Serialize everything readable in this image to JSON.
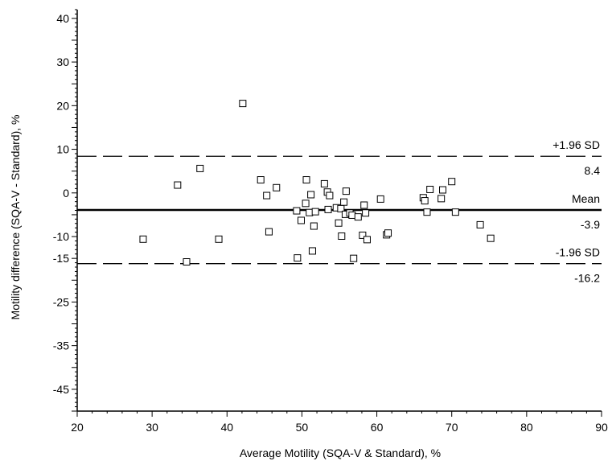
{
  "chart_data": {
    "type": "scatter",
    "title": "",
    "xlabel": "Average Motility (SQA-V & Standard), %",
    "ylabel": "Motility difference (SQA-V - Standard), %",
    "xlim": [
      20,
      90
    ],
    "ylim": [
      -50,
      42
    ],
    "xticks": [
      20,
      30,
      40,
      50,
      60,
      70,
      80,
      90
    ],
    "yticks": [
      40,
      30,
      20,
      10,
      0,
      -10,
      -15,
      -25,
      -35,
      -45
    ],
    "marker": "open-square",
    "grid": false,
    "reference_lines": [
      {
        "label": "+1.96 SD",
        "value": 8.4,
        "value_label": "8.4",
        "style": "dashed"
      },
      {
        "label": "Mean",
        "value": -3.9,
        "value_label": "-3.9",
        "style": "solid"
      },
      {
        "label": "-1.96 SD",
        "value": -16.2,
        "value_label": "-16.2",
        "style": "dashed"
      }
    ],
    "points": [
      {
        "x": 28.8,
        "y": -10.6
      },
      {
        "x": 33.4,
        "y": 1.8
      },
      {
        "x": 34.6,
        "y": -15.8
      },
      {
        "x": 36.4,
        "y": 5.6
      },
      {
        "x": 38.9,
        "y": -10.6
      },
      {
        "x": 42.1,
        "y": 20.5
      },
      {
        "x": 44.5,
        "y": 3.0
      },
      {
        "x": 45.3,
        "y": -0.6
      },
      {
        "x": 45.6,
        "y": -8.9
      },
      {
        "x": 46.6,
        "y": 1.2
      },
      {
        "x": 49.3,
        "y": -4.1
      },
      {
        "x": 49.4,
        "y": -14.9
      },
      {
        "x": 49.9,
        "y": -6.3
      },
      {
        "x": 50.5,
        "y": -2.4
      },
      {
        "x": 50.6,
        "y": 3.0
      },
      {
        "x": 51.0,
        "y": -4.5
      },
      {
        "x": 51.2,
        "y": -0.4
      },
      {
        "x": 51.4,
        "y": -13.3
      },
      {
        "x": 51.6,
        "y": -7.6
      },
      {
        "x": 51.8,
        "y": -4.3
      },
      {
        "x": 53.0,
        "y": 2.1
      },
      {
        "x": 53.4,
        "y": 0.2
      },
      {
        "x": 53.5,
        "y": -3.8
      },
      {
        "x": 53.7,
        "y": -0.6
      },
      {
        "x": 54.6,
        "y": -3.4
      },
      {
        "x": 54.9,
        "y": -6.9
      },
      {
        "x": 55.2,
        "y": -3.6
      },
      {
        "x": 55.3,
        "y": -9.9
      },
      {
        "x": 55.6,
        "y": -2.1
      },
      {
        "x": 55.8,
        "y": -4.9
      },
      {
        "x": 55.9,
        "y": 0.4
      },
      {
        "x": 56.4,
        "y": -4.6
      },
      {
        "x": 56.7,
        "y": -5.1
      },
      {
        "x": 56.9,
        "y": -15.0
      },
      {
        "x": 57.5,
        "y": -5.5
      },
      {
        "x": 58.1,
        "y": -9.7
      },
      {
        "x": 58.3,
        "y": -2.8
      },
      {
        "x": 58.5,
        "y": -4.6
      },
      {
        "x": 58.7,
        "y": -10.7
      },
      {
        "x": 60.5,
        "y": -1.4
      },
      {
        "x": 61.3,
        "y": -9.6
      },
      {
        "x": 61.5,
        "y": -9.2
      },
      {
        "x": 66.2,
        "y": -1.1
      },
      {
        "x": 66.4,
        "y": -1.8
      },
      {
        "x": 66.7,
        "y": -4.4
      },
      {
        "x": 67.1,
        "y": 0.8
      },
      {
        "x": 68.6,
        "y": -1.3
      },
      {
        "x": 68.8,
        "y": 0.7
      },
      {
        "x": 70.0,
        "y": 2.6
      },
      {
        "x": 70.5,
        "y": -4.4
      },
      {
        "x": 73.8,
        "y": -7.3
      },
      {
        "x": 75.2,
        "y": -10.4
      }
    ]
  }
}
